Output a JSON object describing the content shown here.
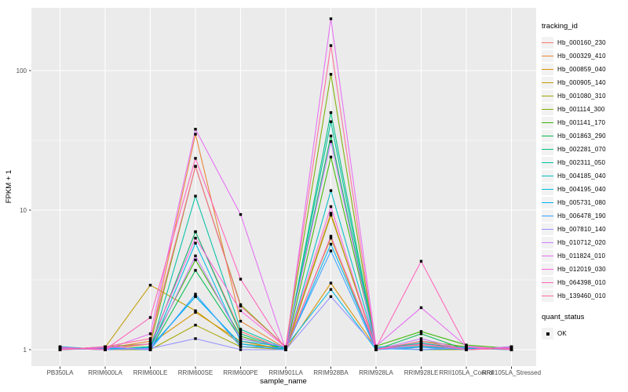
{
  "legend": {
    "tracking_title": "tracking_id",
    "quant_title": "quant_status",
    "quant_items": [
      {
        "label": "OK",
        "marker": "black-square"
      }
    ]
  },
  "chart_data": {
    "type": "line",
    "title": "",
    "xlabel": "sample_name",
    "ylabel": "FPKM + 1",
    "y_scale": "log10",
    "ylim": [
      0.95,
      280
    ],
    "yticks": [
      "1",
      "10",
      "100"
    ],
    "grid": "on",
    "legend_position": "right",
    "panel_bg": "#EBEBEB",
    "grid_color": "#FFFFFF",
    "tick_label_color": "#4D4D4D",
    "point_color": "#000000",
    "point_shape": "square",
    "categories": [
      "PB350LA",
      "RRIM600LA",
      "RRIM600LE",
      "RRIM600SE",
      "RRIM600PE",
      "RRIM901LA",
      "RRIM928BA",
      "RRIM928LA",
      "RRIM928LE",
      "RRII105LA_Control",
      "RRII105LA_Stressed"
    ],
    "series": [
      {
        "name": "Hb_000160_230",
        "color": "#F8766D",
        "values": [
          1.02,
          1.0,
          1.05,
          7.0,
          1.35,
          1.0,
          9.3,
          1.02,
          1.08,
          1.0,
          1.02
        ]
      },
      {
        "name": "Hb_000329_410",
        "color": "#EA8331",
        "values": [
          1.0,
          1.02,
          1.15,
          35.0,
          1.6,
          1.02,
          9.5,
          1.0,
          1.05,
          1.02,
          1.0
        ]
      },
      {
        "name": "Hb_000859_040",
        "color": "#D89000",
        "values": [
          1.03,
          1.0,
          1.1,
          1.85,
          1.15,
          1.0,
          3.0,
          1.03,
          1.0,
          1.0,
          1.03
        ]
      },
      {
        "name": "Hb_000905_140",
        "color": "#C09B00",
        "values": [
          1.0,
          1.04,
          2.9,
          1.9,
          1.1,
          1.03,
          6.3,
          1.0,
          1.1,
          1.04,
          1.0
        ]
      },
      {
        "name": "Hb_001080_310",
        "color": "#A3A500",
        "values": [
          1.05,
          1.0,
          1.0,
          1.5,
          1.05,
          1.0,
          9.2,
          1.05,
          1.0,
          1.0,
          1.05
        ]
      },
      {
        "name": "Hb_001114_300",
        "color": "#7CAE00",
        "values": [
          1.0,
          1.05,
          1.1,
          20.6,
          2.1,
          1.05,
          94.0,
          1.0,
          1.15,
          1.05,
          1.0
        ]
      },
      {
        "name": "Hb_001141_170",
        "color": "#39B600",
        "values": [
          1.02,
          1.0,
          1.05,
          4.4,
          1.25,
          1.0,
          24.0,
          1.06,
          1.35,
          1.08,
          1.02
        ]
      },
      {
        "name": "Hb_001863_290",
        "color": "#00BB4E",
        "values": [
          1.0,
          1.03,
          1.0,
          3.7,
          1.2,
          1.04,
          34.0,
          1.0,
          1.3,
          1.0,
          1.04
        ]
      },
      {
        "name": "Hb_002281_070",
        "color": "#00BF7D",
        "values": [
          1.04,
          1.0,
          1.05,
          7.0,
          1.3,
          1.0,
          50.0,
          1.04,
          1.1,
          1.03,
          1.0
        ]
      },
      {
        "name": "Hb_002311_050",
        "color": "#00C1A3",
        "values": [
          1.0,
          1.05,
          1.0,
          12.6,
          1.4,
          1.02,
          43.0,
          1.0,
          1.12,
          1.0,
          1.05
        ]
      },
      {
        "name": "Hb_004185_040",
        "color": "#00BFC4",
        "values": [
          1.03,
          1.0,
          1.04,
          2.4,
          1.1,
          1.0,
          13.8,
          1.05,
          1.0,
          1.05,
          1.0
        ]
      },
      {
        "name": "Hb_004195_040",
        "color": "#00BAE0",
        "values": [
          1.0,
          1.02,
          1.0,
          5.8,
          1.15,
          1.05,
          2.7,
          1.0,
          1.06,
          1.0,
          1.03
        ]
      },
      {
        "name": "Hb_005731_080",
        "color": "#00B0F6",
        "values": [
          1.05,
          1.0,
          1.03,
          2.4,
          1.1,
          1.0,
          5.7,
          1.02,
          1.0,
          1.02,
          1.0
        ]
      },
      {
        "name": "Hb_006478_190",
        "color": "#35A2FF",
        "values": [
          1.0,
          1.04,
          1.0,
          2.5,
          1.05,
          1.03,
          5.1,
          1.0,
          1.04,
          1.0,
          1.04
        ]
      },
      {
        "name": "Hb_007810_140",
        "color": "#9590FF",
        "values": [
          1.02,
          1.0,
          1.02,
          1.2,
          1.0,
          1.0,
          2.4,
          1.04,
          1.0,
          1.04,
          1.0
        ]
      },
      {
        "name": "Hb_010712_020",
        "color": "#C77CFF",
        "values": [
          1.0,
          1.05,
          1.0,
          4.7,
          1.2,
          1.05,
          31.0,
          1.0,
          1.2,
          1.0,
          1.05
        ]
      },
      {
        "name": "Hb_011824_010",
        "color": "#E76BF3",
        "values": [
          1.04,
          1.0,
          1.3,
          38.0,
          9.3,
          1.0,
          235.0,
          1.06,
          2.0,
          1.06,
          1.0
        ]
      },
      {
        "name": "Hb_012019_030",
        "color": "#FA62DB",
        "values": [
          1.0,
          1.03,
          1.1,
          6.3,
          1.9,
          1.04,
          10.6,
          1.0,
          1.1,
          1.0,
          1.04
        ]
      },
      {
        "name": "Hb_064398_010",
        "color": "#FF62BC",
        "values": [
          1.03,
          1.0,
          1.7,
          23.5,
          3.2,
          1.0,
          6.5,
          1.03,
          4.3,
          1.05,
          1.0
        ]
      },
      {
        "name": "Hb_139460_010",
        "color": "#FF6A98",
        "values": [
          1.0,
          1.05,
          1.2,
          20.6,
          2.05,
          1.05,
          151.0,
          1.0,
          1.15,
          1.0,
          1.02
        ]
      }
    ]
  }
}
